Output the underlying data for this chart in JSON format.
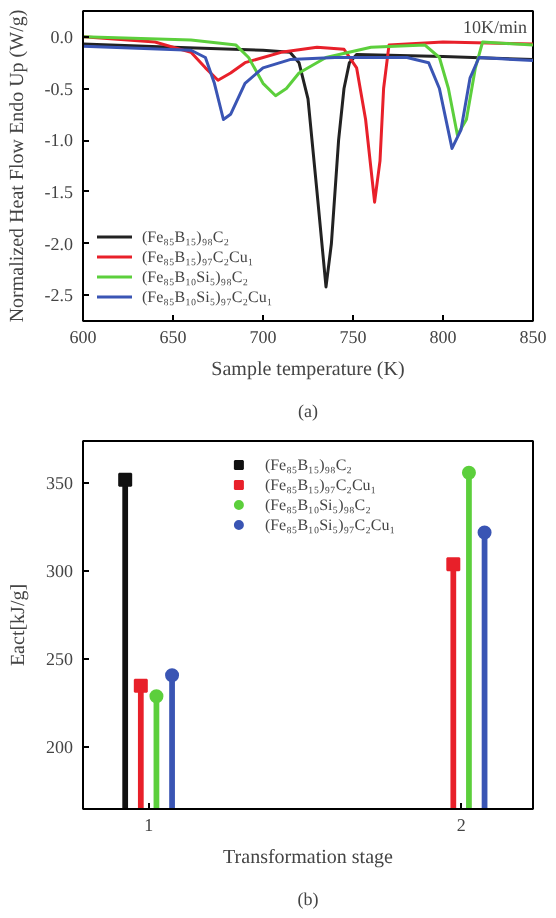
{
  "chart_data": [
    {
      "type": "line",
      "xlabel": "Sample temperature (K)",
      "ylabel": "Normalized Heat Flow Endo Up (W/g)",
      "annotations": [
        "10K/min",
        "(a)"
      ],
      "xlim": [
        600,
        850
      ],
      "ylim": [
        -2.75,
        0.25
      ],
      "xticks": [
        600,
        650,
        700,
        750,
        800,
        850
      ],
      "yticks": [
        {
          "value": 0,
          "label": "0.0"
        },
        -0.5,
        {
          "value": -1,
          "label": "-1.0"
        },
        -1.5,
        {
          "value": -2,
          "label": "-2.0"
        },
        -2.5
      ],
      "legend": "bottom left",
      "grid": false,
      "line_style": "solid",
      "series": [
        {
          "name": "(Fe₈₅B₁₅)₉₈C₂",
          "color": "#222222",
          "x": [
            600,
            650,
            700,
            715,
            720,
            725,
            730,
            735,
            738,
            742,
            745,
            748,
            752,
            800,
            850
          ],
          "values": [
            -0.07,
            -0.1,
            -0.13,
            -0.15,
            -0.25,
            -0.6,
            -1.5,
            -2.42,
            -2.0,
            -1.0,
            -0.5,
            -0.25,
            -0.17,
            -0.19,
            -0.22
          ]
        },
        {
          "name": "(Fe₈₅B₁₅)₉₇C₂Cu₁",
          "color": "#e8202a",
          "x": [
            600,
            640,
            660,
            668,
            675,
            682,
            690,
            710,
            730,
            745,
            752,
            757,
            762,
            765,
            767,
            770,
            800,
            850
          ],
          "values": [
            0.0,
            -0.05,
            -0.15,
            -0.3,
            -0.42,
            -0.35,
            -0.25,
            -0.15,
            -0.1,
            -0.12,
            -0.3,
            -0.8,
            -1.6,
            -1.2,
            -0.5,
            -0.08,
            -0.05,
            -0.07
          ]
        },
        {
          "name": "(Fe₈₅B₁₀Si₅)₉₈C₂",
          "color": "#5ccf3c",
          "x": [
            600,
            660,
            685,
            692,
            700,
            707,
            713,
            720,
            735,
            760,
            790,
            798,
            803,
            808,
            813,
            818,
            822,
            850
          ],
          "values": [
            0.0,
            -0.03,
            -0.08,
            -0.2,
            -0.45,
            -0.57,
            -0.5,
            -0.35,
            -0.2,
            -0.1,
            -0.08,
            -0.2,
            -0.5,
            -0.95,
            -0.8,
            -0.3,
            -0.05,
            -0.08
          ]
        },
        {
          "name": "(Fe₈₅B₁₀Si₅)₉₇C₂Cu₁",
          "color": "#3a55b4",
          "x": [
            600,
            660,
            668,
            673,
            678,
            682,
            690,
            700,
            715,
            740,
            780,
            792,
            798,
            805,
            810,
            815,
            820,
            850
          ],
          "values": [
            -0.09,
            -0.13,
            -0.2,
            -0.45,
            -0.8,
            -0.75,
            -0.45,
            -0.3,
            -0.22,
            -0.2,
            -0.2,
            -0.25,
            -0.5,
            -1.08,
            -0.9,
            -0.4,
            -0.2,
            -0.23
          ]
        }
      ]
    },
    {
      "type": "lollipop",
      "xlabel": "Transformation stage",
      "ylabel": "Eact[kJ/g]",
      "annotations": [
        "(b)"
      ],
      "categories": [
        "1",
        "2"
      ],
      "ylim": [
        165,
        374
      ],
      "yticks": [
        200,
        250,
        300,
        350
      ],
      "legend": "top",
      "grid": false,
      "series": [
        {
          "name": "(Fe₈₅B₁₅)₉₈C₂",
          "color": "#111111",
          "marker": "square",
          "values": [
            352,
            null
          ]
        },
        {
          "name": "(Fe₈₅B₁₅)₉₇C₂Cu₁",
          "color": "#e8202a",
          "marker": "square",
          "values": [
            235,
            304
          ]
        },
        {
          "name": "(Fe₈₅B₁₀Si₅)₉₈C₂",
          "color": "#5ccf3c",
          "marker": "circle",
          "values": [
            229,
            356
          ]
        },
        {
          "name": "(Fe₈₅B₁₀Si₅)₉₇C₂Cu₁",
          "color": "#3a55b4",
          "marker": "circle",
          "values": [
            241,
            322
          ]
        }
      ]
    }
  ]
}
